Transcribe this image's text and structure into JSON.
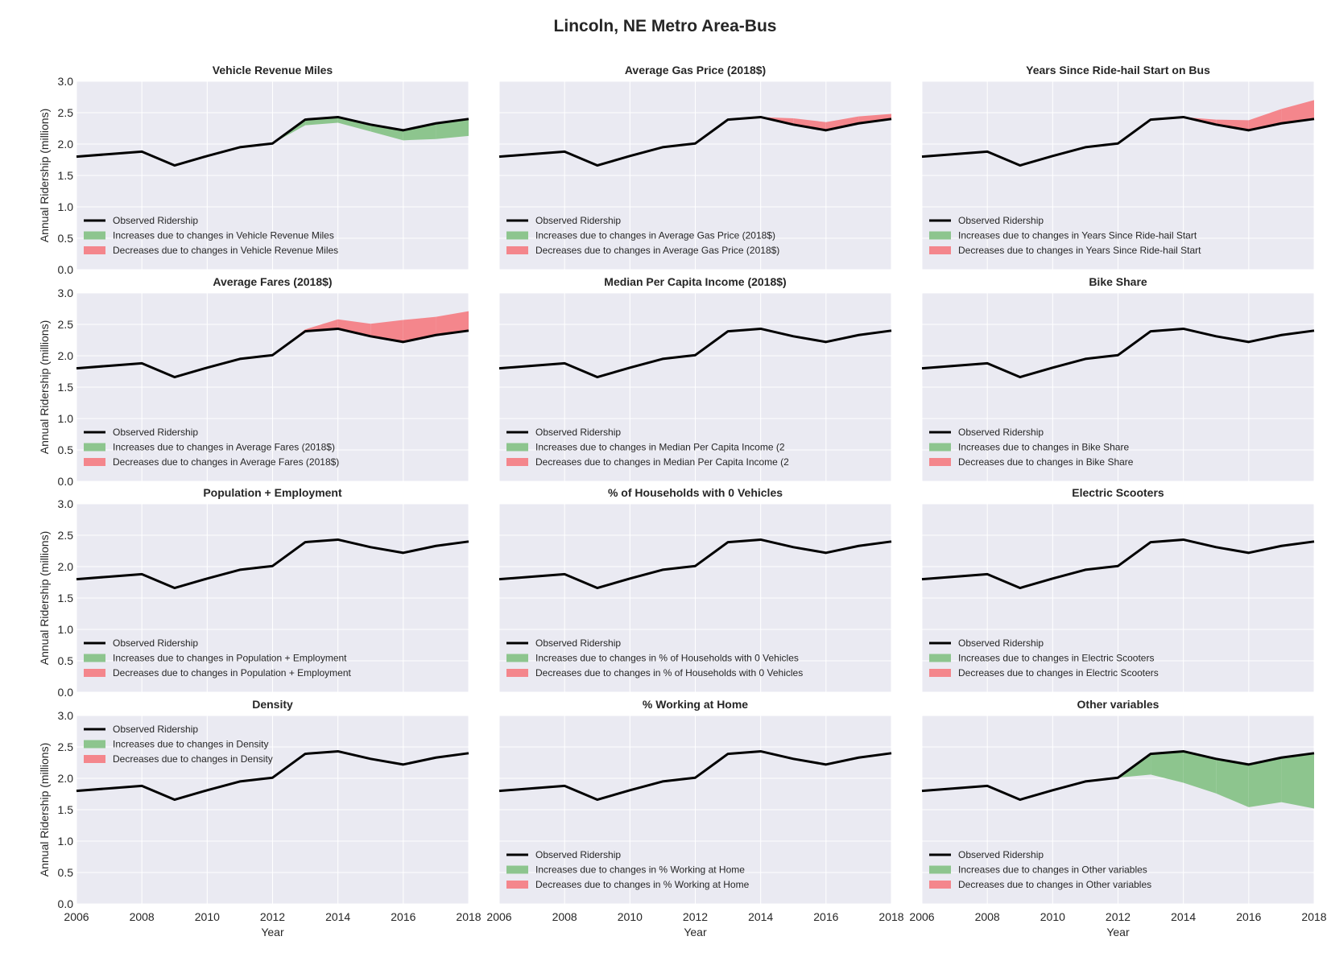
{
  "figure": {
    "title": "Lincoln, NE Metro Area-Bus",
    "xlabel": "Year",
    "ylabel": "Annual Ridership (millions)"
  },
  "colors": {
    "background": "#eaeaf2",
    "grid": "#ffffff",
    "observed": "#000000",
    "increase": "#8dc58e",
    "decrease": "#f4868c"
  },
  "chart_data": {
    "type": "line",
    "layout": "4x3 small multiples",
    "x": [
      2006,
      2007,
      2008,
      2009,
      2010,
      2011,
      2012,
      2013,
      2014,
      2015,
      2016,
      2017,
      2018
    ],
    "xticks": [
      2006,
      2008,
      2010,
      2012,
      2014,
      2016,
      2018
    ],
    "xlim": [
      2006,
      2018
    ],
    "ylim": [
      0,
      3
    ],
    "yticks": [
      "0.0",
      "0.5",
      "1.0",
      "1.5",
      "2.0",
      "2.5",
      "3.0"
    ],
    "grid": true,
    "observed_name": "Observed Ridership",
    "observed": [
      1.8,
      1.84,
      1.88,
      1.66,
      1.81,
      1.95,
      2.01,
      2.39,
      2.43,
      2.31,
      2.22,
      2.33,
      2.4
    ],
    "panels": [
      {
        "title": "Vehicle Revenue Miles",
        "legend_position": "lower-left",
        "legend": [
          "Observed Ridership",
          "Increases due to changes in Vehicle Revenue Miles",
          "Decreases due to changes in Vehicle Revenue Miles"
        ],
        "counterfactual": [
          1.8,
          1.84,
          1.88,
          1.66,
          1.81,
          1.95,
          2.01,
          2.3,
          2.34,
          2.2,
          2.06,
          2.08,
          2.13
        ]
      },
      {
        "title": "Average Gas Price (2018$)",
        "legend_position": "lower-left",
        "legend": [
          "Observed Ridership",
          "Increases due to changes in Average Gas Price (2018$)",
          "Decreases due to changes in Average Gas Price (2018$)"
        ],
        "counterfactual": [
          1.8,
          1.84,
          1.88,
          1.66,
          1.81,
          1.95,
          2.01,
          2.39,
          2.43,
          2.41,
          2.35,
          2.44,
          2.48
        ]
      },
      {
        "title": "Years Since Ride-hail Start on Bus",
        "legend_position": "lower-left",
        "legend": [
          "Observed Ridership",
          "Increases due to changes in Years Since Ride-hail Start",
          "Decreases due to changes in Years Since Ride-hail Start"
        ],
        "counterfactual": [
          1.8,
          1.84,
          1.88,
          1.66,
          1.81,
          1.95,
          2.01,
          2.39,
          2.43,
          2.39,
          2.38,
          2.56,
          2.7
        ]
      },
      {
        "title": "Average Fares (2018$)",
        "legend_position": "lower-left",
        "legend": [
          "Observed Ridership",
          "Increases due to changes in Average Fares (2018$)",
          "Decreases due to changes in Average Fares (2018$)"
        ],
        "counterfactual": [
          1.8,
          1.84,
          1.88,
          1.66,
          1.81,
          1.95,
          2.01,
          2.42,
          2.58,
          2.51,
          2.57,
          2.62,
          2.71
        ]
      },
      {
        "title": "Median Per Capita Income (2018$)",
        "legend_position": "lower-left",
        "legend": [
          "Observed Ridership",
          "Increases due to changes in Median Per Capita Income (2",
          "Decreases due to changes in Median Per Capita Income (2"
        ],
        "counterfactual": [
          1.8,
          1.84,
          1.88,
          1.66,
          1.81,
          1.95,
          2.01,
          2.39,
          2.43,
          2.31,
          2.22,
          2.33,
          2.4
        ]
      },
      {
        "title": "Bike Share",
        "legend_position": "lower-left",
        "legend": [
          "Observed Ridership",
          "Increases due to changes in Bike Share",
          "Decreases due to changes in Bike Share"
        ],
        "counterfactual": [
          1.8,
          1.84,
          1.88,
          1.66,
          1.81,
          1.95,
          2.01,
          2.39,
          2.43,
          2.31,
          2.22,
          2.33,
          2.4
        ]
      },
      {
        "title": "Population + Employment",
        "legend_position": "lower-left",
        "legend": [
          "Observed Ridership",
          "Increases due to changes in Population + Employment",
          "Decreases due to changes in Population + Employment"
        ],
        "counterfactual": [
          1.8,
          1.84,
          1.88,
          1.66,
          1.81,
          1.95,
          2.01,
          2.39,
          2.43,
          2.31,
          2.22,
          2.33,
          2.4
        ]
      },
      {
        "title": "% of Households with 0 Vehicles",
        "legend_position": "lower-left",
        "legend": [
          "Observed Ridership",
          "Increases due to changes in % of Households with 0 Vehicles",
          "Decreases due to changes in % of Households with 0 Vehicles"
        ],
        "counterfactual": [
          1.8,
          1.84,
          1.88,
          1.66,
          1.81,
          1.95,
          2.01,
          2.39,
          2.43,
          2.31,
          2.22,
          2.33,
          2.4
        ]
      },
      {
        "title": "Electric Scooters",
        "legend_position": "lower-left",
        "legend": [
          "Observed Ridership",
          "Increases due to changes in Electric Scooters",
          "Decreases due to changes in Electric Scooters"
        ],
        "counterfactual": [
          1.8,
          1.84,
          1.88,
          1.66,
          1.81,
          1.95,
          2.01,
          2.39,
          2.43,
          2.31,
          2.22,
          2.33,
          2.4
        ]
      },
      {
        "title": "Density",
        "legend_position": "upper-left",
        "legend": [
          "Observed Ridership",
          "Increases due to changes in Density",
          "Decreases due to changes in Density"
        ],
        "counterfactual": [
          1.8,
          1.84,
          1.88,
          1.66,
          1.81,
          1.95,
          2.01,
          2.39,
          2.43,
          2.31,
          2.22,
          2.33,
          2.4
        ]
      },
      {
        "title": "% Working at Home",
        "legend_position": "lower-left",
        "legend": [
          "Observed Ridership",
          "Increases due to changes in % Working at Home",
          "Decreases due to changes in % Working at Home"
        ],
        "counterfactual": [
          1.8,
          1.84,
          1.88,
          1.66,
          1.81,
          1.95,
          2.01,
          2.39,
          2.43,
          2.31,
          2.22,
          2.33,
          2.4
        ]
      },
      {
        "title": "Other variables",
        "legend_position": "lower-left",
        "legend": [
          "Observed Ridership",
          "Increases due to changes in Other variables",
          "Decreases due to changes in Other variables"
        ],
        "counterfactual": [
          1.8,
          1.84,
          1.88,
          1.66,
          1.81,
          1.95,
          2.01,
          2.06,
          1.93,
          1.76,
          1.54,
          1.62,
          1.52
        ]
      }
    ]
  }
}
